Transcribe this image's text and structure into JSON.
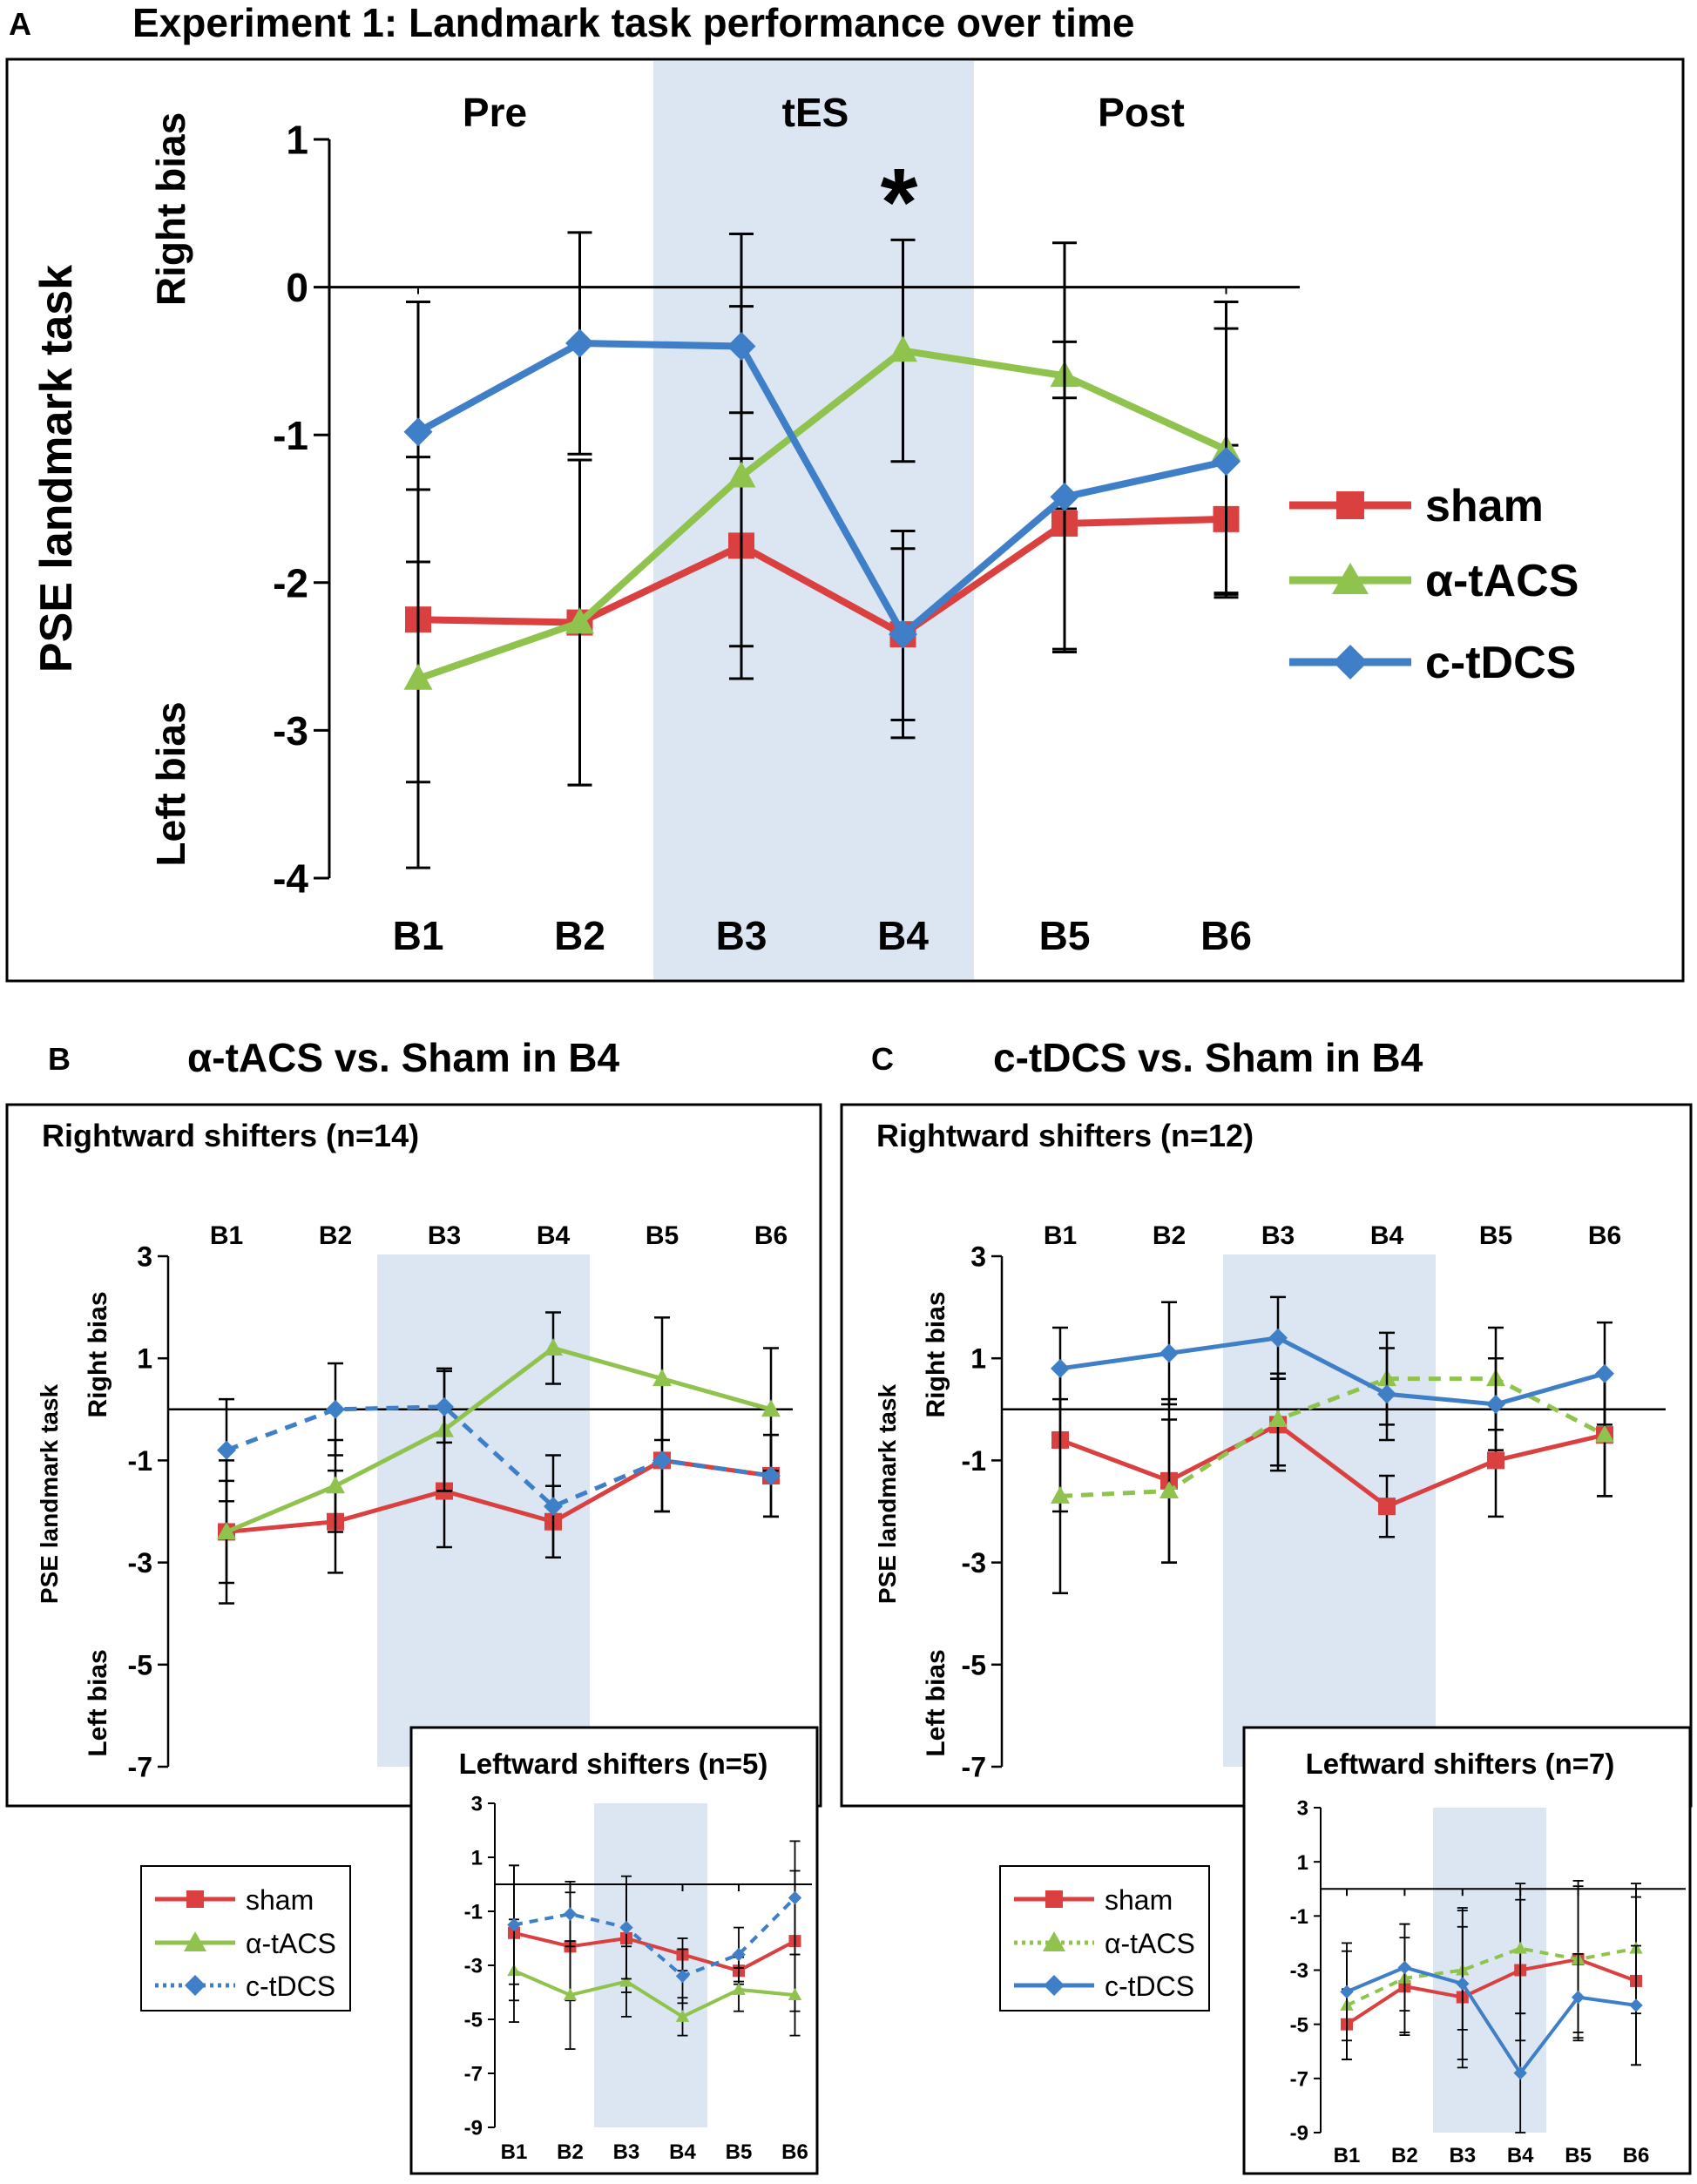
{
  "panel_a": {
    "letter": "A",
    "title": "Experiment 1: Landmark task performance over time",
    "ylabel": "PSE landmark task",
    "right_bias": "Right bias",
    "left_bias": "Left bias",
    "phases": [
      "Pre",
      "tES",
      "Post"
    ],
    "significance": "*"
  },
  "panel_b": {
    "letter": "B",
    "title": "α-tACS vs. Sham in B4"
  },
  "panel_c": {
    "letter": "C",
    "title": "c-tDCS vs. Sham in B4"
  },
  "small_labels": {
    "ylabel": "PSE landmark task",
    "right_bias": "Right bias",
    "left_bias": "Left bias"
  },
  "legend_b": {
    "items": [
      "sham",
      "α-tACS",
      "c-tDCS"
    ]
  },
  "legend_c": {
    "items": [
      "sham",
      "α-tACS",
      "c-tDCS"
    ]
  },
  "colors": {
    "sham": "#d9403f",
    "tacs": "#8fc34d",
    "tdcs": "#3f7fc7",
    "shade": "#dce6f2"
  },
  "chart_data": [
    {
      "id": "A",
      "type": "line",
      "title": "Experiment 1: Landmark task performance over time",
      "categories": [
        "B1",
        "B2",
        "B3",
        "B4",
        "B5",
        "B6"
      ],
      "ylabel": "PSE landmark task",
      "ylim": [
        -4,
        1
      ],
      "yticks": [
        1,
        0,
        -1,
        -2,
        -3,
        -4
      ],
      "shaded": [
        "B3",
        "B4"
      ],
      "series": [
        {
          "name": "sham",
          "style": "solid",
          "values": [
            -2.25,
            -2.27,
            -1.75,
            -2.35,
            -1.6,
            -1.57
          ],
          "err": [
            1.1,
            1.1,
            0.9,
            0.7,
            0.85,
            0.5
          ]
        },
        {
          "name": "α-tACS",
          "style": "solid",
          "values": [
            -2.65,
            -2.27,
            -1.28,
            -0.43,
            -0.6,
            -1.1
          ],
          "err": [
            1.28,
            1.1,
            1.15,
            0.75,
            0.9,
            1.0
          ]
        },
        {
          "name": "c-tDCS",
          "style": "solid",
          "values": [
            -0.98,
            -0.38,
            -0.4,
            -2.35,
            -1.42,
            -1.18
          ],
          "err": [
            0.88,
            0.75,
            0.76,
            0.58,
            1.05,
            0.9
          ]
        }
      ]
    },
    {
      "id": "B-rightward",
      "type": "line",
      "title": "Rightward shifters (n=14)",
      "categories": [
        "B1",
        "B2",
        "B3",
        "B4",
        "B5",
        "B6"
      ],
      "ylim": [
        -7,
        3
      ],
      "yticks": [
        3,
        1,
        -1,
        -3,
        -5,
        -7
      ],
      "shaded": [
        "B3",
        "B4"
      ],
      "series": [
        {
          "name": "sham",
          "style": "solid",
          "values": [
            -2.4,
            -2.2,
            -1.6,
            -2.2,
            -1.0,
            -1.3
          ],
          "err": [
            1.0,
            1.0,
            1.1,
            0.7,
            1.0,
            0.8
          ]
        },
        {
          "name": "α-tACS",
          "style": "solid",
          "values": [
            -2.4,
            -1.5,
            -0.4,
            1.2,
            0.6,
            0.0
          ],
          "err": [
            1.4,
            0.9,
            1.2,
            0.7,
            1.2,
            1.2
          ]
        },
        {
          "name": "c-tDCS",
          "style": "dashed",
          "values": [
            -0.8,
            0.0,
            0.05,
            -1.9,
            -1.0,
            -1.3
          ],
          "err": [
            1.0,
            0.9,
            0.7,
            1.0,
            1.0,
            0.8
          ]
        }
      ]
    },
    {
      "id": "B-leftward",
      "type": "line",
      "title": "Leftward shifters (n=5)",
      "categories": [
        "B1",
        "B2",
        "B3",
        "B4",
        "B5",
        "B6"
      ],
      "ylim": [
        -9,
        3
      ],
      "yticks": [
        3,
        1,
        -1,
        -3,
        -5,
        -7,
        -9
      ],
      "shaded": [
        "B3",
        "B4"
      ],
      "series": [
        {
          "name": "sham",
          "style": "solid",
          "values": [
            -1.8,
            -2.3,
            -2.0,
            -2.6,
            -3.2,
            -2.1
          ],
          "err": [
            2.5,
            2.0,
            2.0,
            0.6,
            0.5,
            2.6
          ]
        },
        {
          "name": "α-tACS",
          "style": "solid",
          "values": [
            -3.2,
            -4.1,
            -3.6,
            -4.9,
            -3.9,
            -4.1
          ],
          "err": [
            1.9,
            2.0,
            1.3,
            0.7,
            0.8,
            1.5
          ]
        },
        {
          "name": "c-tDCS",
          "style": "dashed",
          "values": [
            -1.5,
            -1.1,
            -1.6,
            -3.4,
            -2.6,
            -0.5
          ],
          "err": [
            2.2,
            1.2,
            1.9,
            1.0,
            1.0,
            2.1
          ]
        }
      ]
    },
    {
      "id": "C-rightward",
      "type": "line",
      "title": "Rightward shifters (n=12)",
      "categories": [
        "B1",
        "B2",
        "B3",
        "B4",
        "B5",
        "B6"
      ],
      "ylim": [
        -7,
        3
      ],
      "yticks": [
        3,
        1,
        -1,
        -3,
        -5,
        -7
      ],
      "shaded": [
        "B3",
        "B4"
      ],
      "series": [
        {
          "name": "sham",
          "style": "solid",
          "values": [
            -0.6,
            -1.4,
            -0.3,
            -1.9,
            -1.0,
            -0.5
          ],
          "err": [
            1.4,
            1.6,
            0.9,
            0.6,
            1.1,
            1.2
          ]
        },
        {
          "name": "α-tACS",
          "style": "dashed",
          "values": [
            -1.7,
            -1.6,
            -0.2,
            0.6,
            0.6,
            -0.5
          ],
          "err": [
            1.9,
            1.4,
            0.9,
            0.9,
            1.0,
            1.2
          ]
        },
        {
          "name": "c-tDCS",
          "style": "solid",
          "values": [
            0.8,
            1.1,
            1.4,
            0.3,
            0.1,
            0.7
          ],
          "err": [
            0.8,
            1.0,
            0.8,
            0.9,
            0.9,
            1.0
          ]
        }
      ]
    },
    {
      "id": "C-leftward",
      "type": "line",
      "title": "Leftward shifters (n=7)",
      "categories": [
        "B1",
        "B2",
        "B3",
        "B4",
        "B5",
        "B6"
      ],
      "ylim": [
        -9,
        3
      ],
      "yticks": [
        3,
        1,
        -1,
        -3,
        -5,
        -7,
        -9
      ],
      "shaded": [
        "B3",
        "B4"
      ],
      "series": [
        {
          "name": "sham",
          "style": "solid",
          "values": [
            -5.0,
            -3.6,
            -4.0,
            -3.0,
            -2.6,
            -3.4
          ],
          "err": [
            1.3,
            1.8,
            2.6,
            2.6,
            2.9,
            3.1
          ]
        },
        {
          "name": "α-tACS",
          "style": "dashed",
          "values": [
            -4.3,
            -3.3,
            -3.0,
            -2.2,
            -2.6,
            -2.2
          ],
          "err": [
            2.0,
            2.0,
            2.2,
            2.4,
            2.7,
            2.4
          ]
        },
        {
          "name": "c-tDCS",
          "style": "solid",
          "values": [
            -3.8,
            -2.9,
            -3.5,
            -6.8,
            -4.0,
            -4.3
          ],
          "err": [
            1.8,
            1.6,
            2.8,
            2.2,
            1.6,
            2.2
          ]
        }
      ]
    }
  ]
}
